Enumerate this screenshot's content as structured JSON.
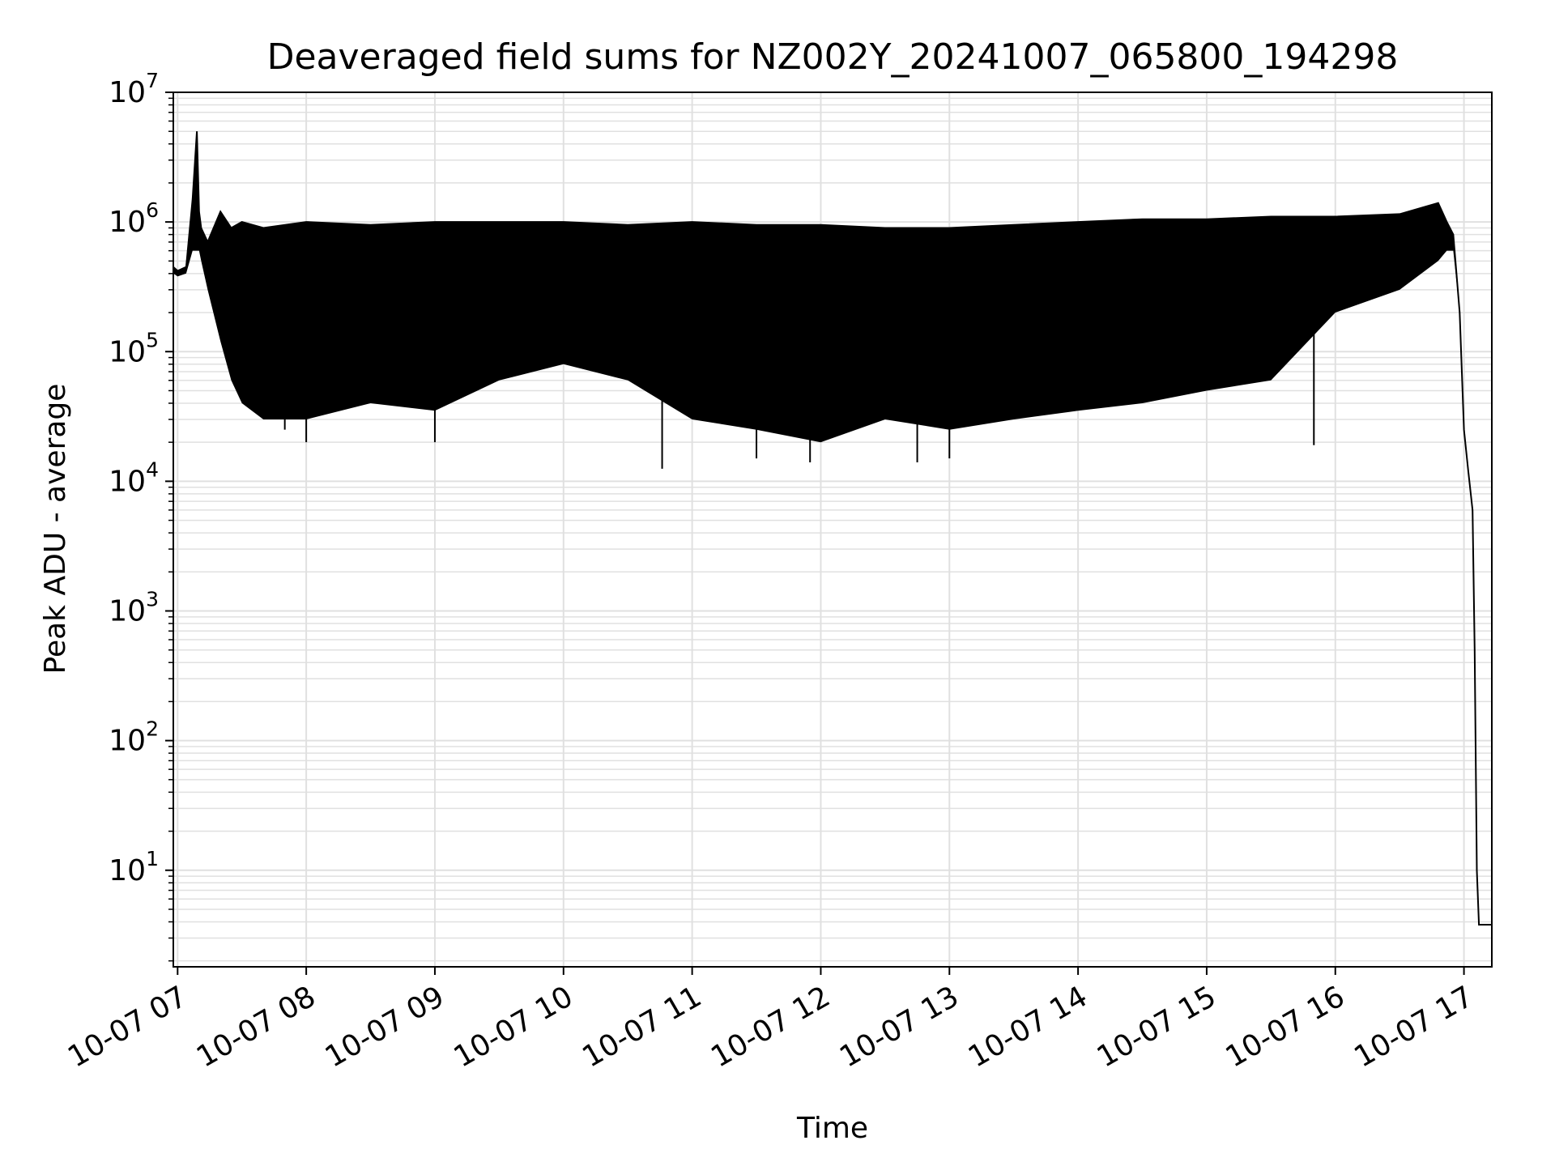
{
  "chart_data": {
    "type": "line",
    "title": "Deaveraged field sums for NZ002Y_20241007_065800_194298",
    "xlabel": "Time",
    "ylabel": "Peak ADU - average",
    "yscale": "log",
    "xlim": [
      "2024-10-07 06:58",
      "2024-10-07 17:13"
    ],
    "ylim": [
      1.8,
      10000000
    ],
    "grid": true,
    "line_color": "#000000",
    "grid_color": "#e0e0e0",
    "x_tick_labels": [
      "10-07 07",
      "10-07 08",
      "10-07 09",
      "10-07 10",
      "10-07 11",
      "10-07 12",
      "10-07 13",
      "10-07 14",
      "10-07 15",
      "10-07 16",
      "10-07 17"
    ],
    "y_tick_labels": [
      {
        "base": "10",
        "exp": "1"
      },
      {
        "base": "10",
        "exp": "2"
      },
      {
        "base": "10",
        "exp": "3"
      },
      {
        "base": "10",
        "exp": "4"
      },
      {
        "base": "10",
        "exp": "5"
      },
      {
        "base": "10",
        "exp": "6"
      },
      {
        "base": "10",
        "exp": "7"
      }
    ],
    "series": [
      {
        "x": [
          "2024-10-07 06:58",
          "2024-10-07 07:00",
          "2024-10-07 07:04",
          "2024-10-07 07:07",
          "2024-10-07 07:09",
          "2024-10-07 07:10",
          "2024-10-07 07:11",
          "2024-10-07 07:14",
          "2024-10-07 07:20",
          "2024-10-07 07:25",
          "2024-10-07 07:30",
          "2024-10-07 07:40",
          "2024-10-07 08:00",
          "2024-10-07 08:30",
          "2024-10-07 09:00",
          "2024-10-07 09:30",
          "2024-10-07 10:00",
          "2024-10-07 10:30",
          "2024-10-07 11:00",
          "2024-10-07 11:30",
          "2024-10-07 12:00",
          "2024-10-07 12:30",
          "2024-10-07 13:00",
          "2024-10-07 13:30",
          "2024-10-07 14:00",
          "2024-10-07 14:30",
          "2024-10-07 15:00",
          "2024-10-07 15:30",
          "2024-10-07 16:00",
          "2024-10-07 16:30",
          "2024-10-07 16:48",
          "2024-10-07 16:52",
          "2024-10-07 16:55",
          "2024-10-07 16:58",
          "2024-10-07 17:00",
          "2024-10-07 17:02",
          "2024-10-07 17:04",
          "2024-10-07 17:05",
          "2024-10-07 17:06",
          "2024-10-07 17:07",
          "2024-10-07 17:13"
        ],
        "y": [
          450000,
          420000,
          450000,
          1500000,
          5000000,
          1200000,
          900000,
          700000,
          1200000,
          900000,
          1000000,
          900000,
          1000000,
          950000,
          1000000,
          1000000,
          1000000,
          950000,
          1000000,
          950000,
          950000,
          900000,
          900000,
          950000,
          1000000,
          1050000,
          1050000,
          1100000,
          1100000,
          1150000,
          1400000,
          1000000,
          800000,
          200000,
          25000,
          12000,
          6000,
          500,
          10,
          3.8,
          3.8
        ],
        "envelope_low": [
          400000,
          380000,
          400000,
          600000,
          600000,
          600000,
          500000,
          300000,
          120000,
          60000,
          40000,
          30000,
          30000,
          40000,
          35000,
          60000,
          80000,
          60000,
          30000,
          25000,
          20000,
          30000,
          25000,
          30000,
          35000,
          40000,
          50000,
          60000,
          200000,
          300000,
          500000,
          600000,
          600000,
          200000,
          25000,
          12000,
          6000,
          500,
          10,
          3.8,
          3.8
        ],
        "min_points": [
          {
            "x": "2024-10-07 07:50",
            "y": 25000
          },
          {
            "x": "2024-10-07 08:00",
            "y": 20000
          },
          {
            "x": "2024-10-07 09:00",
            "y": 20000
          },
          {
            "x": "2024-10-07 10:46",
            "y": 12500
          },
          {
            "x": "2024-10-07 11:30",
            "y": 15000
          },
          {
            "x": "2024-10-07 11:55",
            "y": 14000
          },
          {
            "x": "2024-10-07 12:45",
            "y": 14000
          },
          {
            "x": "2024-10-07 13:00",
            "y": 15000
          },
          {
            "x": "2024-10-07 15:50",
            "y": 19000
          }
        ]
      }
    ]
  }
}
